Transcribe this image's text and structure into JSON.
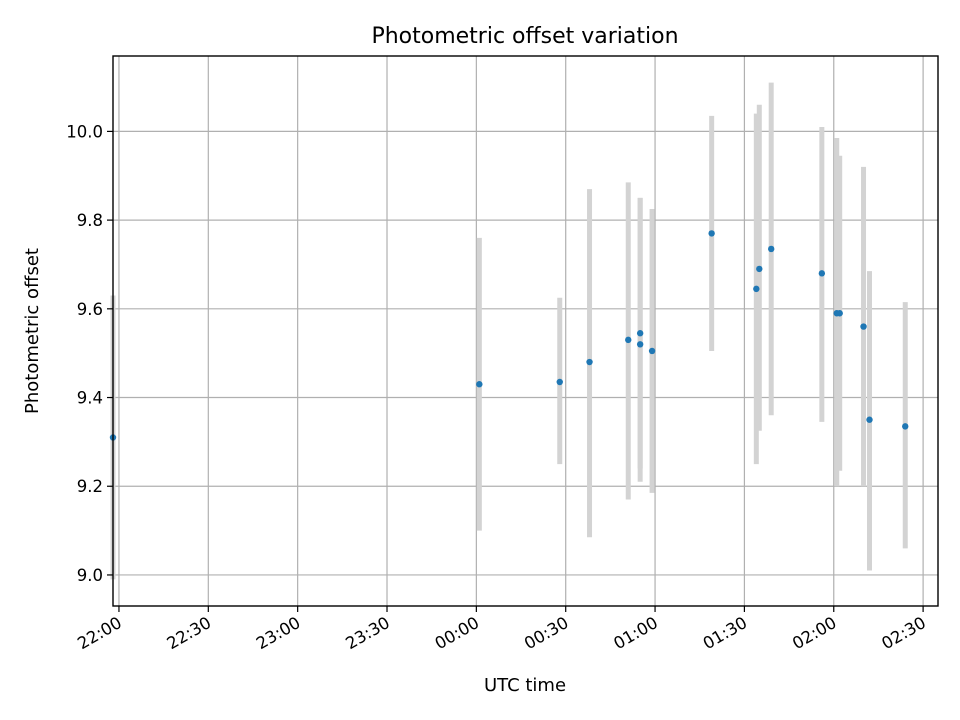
{
  "chart_data": {
    "type": "scatter",
    "title": "Photometric offset variation",
    "xlabel": "UTC time",
    "ylabel": "Photometric offset",
    "xlim": [
      "21:58",
      "02:35"
    ],
    "ylim": [
      8.93,
      10.17
    ],
    "x_ticks": [
      "22:00",
      "22:30",
      "23:00",
      "23:30",
      "00:00",
      "00:30",
      "01:00",
      "01:30",
      "02:00",
      "02:30"
    ],
    "y_ticks": [
      "9.0",
      "9.2",
      "9.4",
      "9.6",
      "9.8",
      "10.0"
    ],
    "grid": true,
    "colors": {
      "point": "#1f77b4",
      "errorbar": "#d3d3d3",
      "grid": "#b0b0b0"
    },
    "series": [
      {
        "points": [
          {
            "x": "21:58",
            "y": 9.31,
            "yerr_low": 8.99,
            "yerr_high": 9.63
          },
          {
            "x": "00:01",
            "y": 9.43,
            "yerr_low": 9.1,
            "yerr_high": 9.76
          },
          {
            "x": "00:28",
            "y": 9.435,
            "yerr_low": 9.25,
            "yerr_high": 9.625
          },
          {
            "x": "00:38",
            "y": 9.48,
            "yerr_low": 9.085,
            "yerr_high": 9.87
          },
          {
            "x": "00:51",
            "y": 9.53,
            "yerr_low": 9.17,
            "yerr_high": 9.885
          },
          {
            "x": "00:55",
            "y": 9.52,
            "yerr_low": 9.21,
            "yerr_high": 9.85
          },
          {
            "x": "00:55",
            "y": 9.545,
            "yerr_low": 9.24,
            "yerr_high": 9.85
          },
          {
            "x": "00:59",
            "y": 9.505,
            "yerr_low": 9.185,
            "yerr_high": 9.825
          },
          {
            "x": "01:19",
            "y": 9.77,
            "yerr_low": 9.505,
            "yerr_high": 10.035
          },
          {
            "x": "01:34",
            "y": 9.645,
            "yerr_low": 9.25,
            "yerr_high": 10.04
          },
          {
            "x": "01:35",
            "y": 9.69,
            "yerr_low": 9.325,
            "yerr_high": 10.06
          },
          {
            "x": "01:39",
            "y": 9.735,
            "yerr_low": 9.36,
            "yerr_high": 10.11
          },
          {
            "x": "01:56",
            "y": 9.68,
            "yerr_low": 9.345,
            "yerr_high": 10.01
          },
          {
            "x": "02:01",
            "y": 9.59,
            "yerr_low": 9.2,
            "yerr_high": 9.985
          },
          {
            "x": "02:02",
            "y": 9.59,
            "yerr_low": 9.235,
            "yerr_high": 9.945
          },
          {
            "x": "02:10",
            "y": 9.56,
            "yerr_low": 9.2,
            "yerr_high": 9.92
          },
          {
            "x": "02:12",
            "y": 9.35,
            "yerr_low": 9.01,
            "yerr_high": 9.685
          },
          {
            "x": "02:24",
            "y": 9.335,
            "yerr_low": 9.06,
            "yerr_high": 9.615
          }
        ]
      }
    ]
  }
}
